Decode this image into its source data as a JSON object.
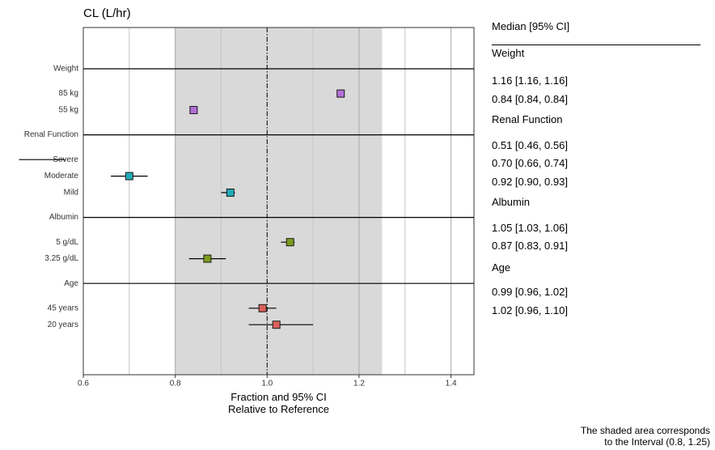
{
  "chart_data": {
    "type": "forest",
    "title": "CL (L/hr)",
    "xlabel_line1": "Fraction and 95% CI",
    "xlabel_line2": "Relative to Reference",
    "xlim": [
      0.6,
      1.45
    ],
    "x_ticks": [
      "0.6",
      "0.8",
      "1.0",
      "1.2",
      "1.4"
    ],
    "reference_line": 1.0,
    "shaded_interval": [
      0.8,
      1.25
    ],
    "grid": true,
    "table_header": "Median [95% CI]",
    "groups": [
      {
        "name": "Weight",
        "color": "#b36fd7",
        "rows": [
          {
            "label": "85 kg",
            "median": 1.16,
            "lo": 1.16,
            "hi": 1.16,
            "text": "1.16 [1.16, 1.16]"
          },
          {
            "label": "55 kg",
            "median": 0.84,
            "lo": 0.84,
            "hi": 0.84,
            "text": "0.84 [0.84, 0.84]"
          }
        ]
      },
      {
        "name": "Renal Function",
        "color": "#21aab6",
        "rows": [
          {
            "label": "Severe",
            "median": 0.51,
            "lo": 0.46,
            "hi": 0.56,
            "text": "0.51 [0.46, 0.56]"
          },
          {
            "label": "Moderate",
            "median": 0.7,
            "lo": 0.66,
            "hi": 0.74,
            "text": "0.70 [0.66, 0.74]"
          },
          {
            "label": "Mild",
            "median": 0.92,
            "lo": 0.9,
            "hi": 0.93,
            "text": "0.92 [0.90, 0.93]"
          }
        ]
      },
      {
        "name": "Albumin",
        "color": "#7a9c1e",
        "rows": [
          {
            "label": "5 g/dL",
            "median": 1.05,
            "lo": 1.03,
            "hi": 1.06,
            "text": "1.05 [1.03, 1.06]"
          },
          {
            "label": "3.25 g/dL",
            "median": 0.87,
            "lo": 0.83,
            "hi": 0.91,
            "text": "0.87 [0.83, 0.91]"
          }
        ]
      },
      {
        "name": "Age",
        "color": "#d9605c",
        "rows": [
          {
            "label": "45 years",
            "median": 0.99,
            "lo": 0.96,
            "hi": 1.02,
            "text": "0.99 [0.96, 1.02]"
          },
          {
            "label": "20 years",
            "median": 1.02,
            "lo": 0.96,
            "hi": 1.1,
            "text": "1.02 [0.96, 1.10]"
          }
        ]
      }
    ],
    "caption_line1": "The shaded area corresponds",
    "caption_line2": "to the Interval (0.8, 1.25)"
  }
}
